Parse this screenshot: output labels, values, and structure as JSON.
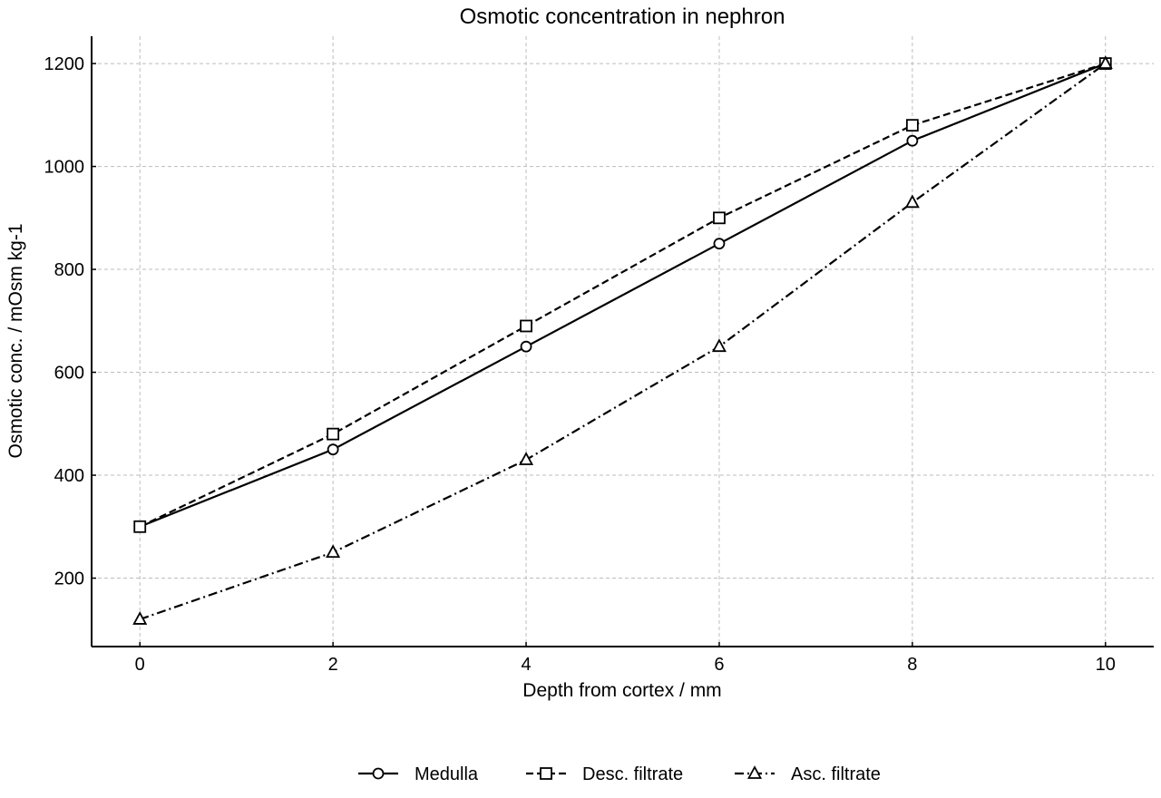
{
  "chart_data": {
    "type": "line",
    "title": "Osmotic concentration in nephron",
    "xlabel": "Depth from cortex / mm",
    "ylabel": "Osmotic conc. / mOsm kg-1",
    "x": [
      0,
      2,
      4,
      6,
      8,
      10
    ],
    "xticks": [
      0,
      2,
      4,
      6,
      8,
      10
    ],
    "yticks": [
      200,
      400,
      600,
      800,
      1000,
      1200
    ],
    "xlim": [
      -0.5,
      10.5
    ],
    "ylim": [
      67,
      1253
    ],
    "grid": true,
    "legend_position": "bottom-center",
    "series": [
      {
        "name": "Medulla",
        "values": [
          300,
          450,
          650,
          850,
          1050,
          1200
        ],
        "marker": "circle",
        "line_style": "solid",
        "color": "#000000"
      },
      {
        "name": "Desc. filtrate",
        "values": [
          300,
          480,
          690,
          900,
          1080,
          1200
        ],
        "marker": "square",
        "line_style": "dashed",
        "color": "#000000"
      },
      {
        "name": "Asc. filtrate",
        "values": [
          120,
          250,
          430,
          650,
          930,
          1200
        ],
        "marker": "triangle",
        "line_style": "dashdot",
        "color": "#000000"
      }
    ]
  }
}
